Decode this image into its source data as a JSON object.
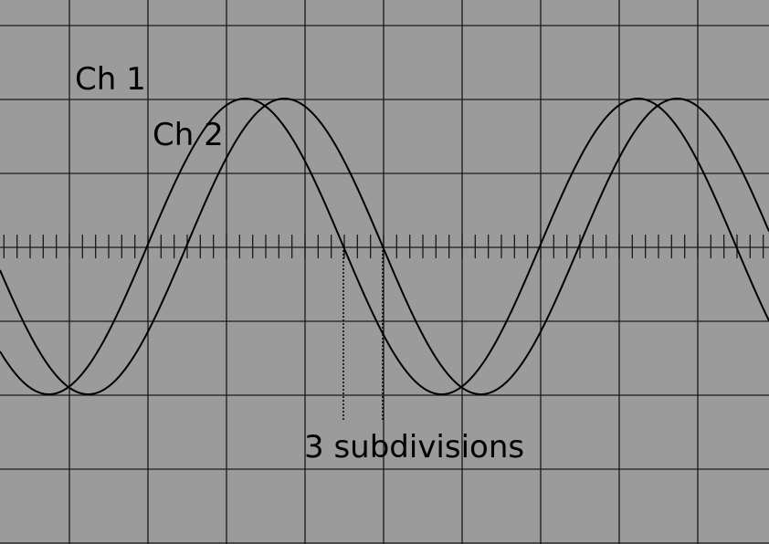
{
  "background_color": "#9b9b9b",
  "trace_color": "#000000",
  "labels": {
    "ch1": "Ch 1",
    "ch2": "Ch 2",
    "annotation": "3 subdivisions"
  },
  "phase_shift_subdivisions": 3
}
